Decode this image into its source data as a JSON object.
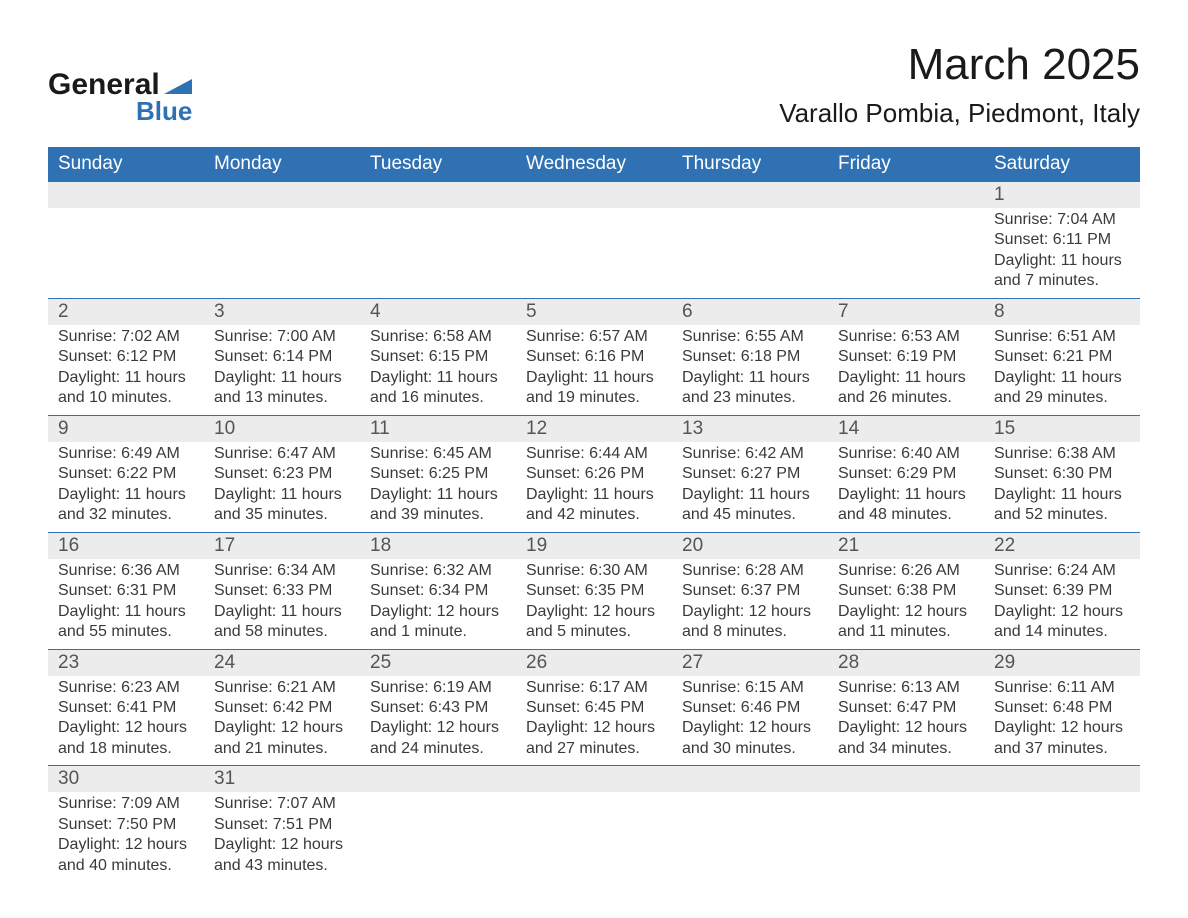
{
  "brand": {
    "line1": "General",
    "line2": "Blue",
    "accent_color": "#2f71b3"
  },
  "title": "March 2025",
  "location": "Varallo Pombia, Piedmont, Italy",
  "colors": {
    "header_bg": "#2f71b3",
    "header_text": "#ffffff",
    "daynum_bg": "#ececec",
    "border": "#2f71b3",
    "text": "#3a3a3a",
    "page_bg": "#ffffff"
  },
  "fonts": {
    "title_size_pt": 33,
    "location_size_pt": 20,
    "header_size_pt": 14,
    "daynum_size_pt": 14,
    "body_size_pt": 12
  },
  "days_of_week": [
    "Sunday",
    "Monday",
    "Tuesday",
    "Wednesday",
    "Thursday",
    "Friday",
    "Saturday"
  ],
  "labels": {
    "sunrise": "Sunrise:",
    "sunset": "Sunset:",
    "daylight": "Daylight:"
  },
  "weeks": [
    [
      null,
      null,
      null,
      null,
      null,
      null,
      {
        "n": 1,
        "sunrise": "7:04 AM",
        "sunset": "6:11 PM",
        "daylight": "11 hours and 7 minutes."
      }
    ],
    [
      {
        "n": 2,
        "sunrise": "7:02 AM",
        "sunset": "6:12 PM",
        "daylight": "11 hours and 10 minutes."
      },
      {
        "n": 3,
        "sunrise": "7:00 AM",
        "sunset": "6:14 PM",
        "daylight": "11 hours and 13 minutes."
      },
      {
        "n": 4,
        "sunrise": "6:58 AM",
        "sunset": "6:15 PM",
        "daylight": "11 hours and 16 minutes."
      },
      {
        "n": 5,
        "sunrise": "6:57 AM",
        "sunset": "6:16 PM",
        "daylight": "11 hours and 19 minutes."
      },
      {
        "n": 6,
        "sunrise": "6:55 AM",
        "sunset": "6:18 PM",
        "daylight": "11 hours and 23 minutes."
      },
      {
        "n": 7,
        "sunrise": "6:53 AM",
        "sunset": "6:19 PM",
        "daylight": "11 hours and 26 minutes."
      },
      {
        "n": 8,
        "sunrise": "6:51 AM",
        "sunset": "6:21 PM",
        "daylight": "11 hours and 29 minutes."
      }
    ],
    [
      {
        "n": 9,
        "sunrise": "6:49 AM",
        "sunset": "6:22 PM",
        "daylight": "11 hours and 32 minutes."
      },
      {
        "n": 10,
        "sunrise": "6:47 AM",
        "sunset": "6:23 PM",
        "daylight": "11 hours and 35 minutes."
      },
      {
        "n": 11,
        "sunrise": "6:45 AM",
        "sunset": "6:25 PM",
        "daylight": "11 hours and 39 minutes."
      },
      {
        "n": 12,
        "sunrise": "6:44 AM",
        "sunset": "6:26 PM",
        "daylight": "11 hours and 42 minutes."
      },
      {
        "n": 13,
        "sunrise": "6:42 AM",
        "sunset": "6:27 PM",
        "daylight": "11 hours and 45 minutes."
      },
      {
        "n": 14,
        "sunrise": "6:40 AM",
        "sunset": "6:29 PM",
        "daylight": "11 hours and 48 minutes."
      },
      {
        "n": 15,
        "sunrise": "6:38 AM",
        "sunset": "6:30 PM",
        "daylight": "11 hours and 52 minutes."
      }
    ],
    [
      {
        "n": 16,
        "sunrise": "6:36 AM",
        "sunset": "6:31 PM",
        "daylight": "11 hours and 55 minutes."
      },
      {
        "n": 17,
        "sunrise": "6:34 AM",
        "sunset": "6:33 PM",
        "daylight": "11 hours and 58 minutes."
      },
      {
        "n": 18,
        "sunrise": "6:32 AM",
        "sunset": "6:34 PM",
        "daylight": "12 hours and 1 minute."
      },
      {
        "n": 19,
        "sunrise": "6:30 AM",
        "sunset": "6:35 PM",
        "daylight": "12 hours and 5 minutes."
      },
      {
        "n": 20,
        "sunrise": "6:28 AM",
        "sunset": "6:37 PM",
        "daylight": "12 hours and 8 minutes."
      },
      {
        "n": 21,
        "sunrise": "6:26 AM",
        "sunset": "6:38 PM",
        "daylight": "12 hours and 11 minutes."
      },
      {
        "n": 22,
        "sunrise": "6:24 AM",
        "sunset": "6:39 PM",
        "daylight": "12 hours and 14 minutes."
      }
    ],
    [
      {
        "n": 23,
        "sunrise": "6:23 AM",
        "sunset": "6:41 PM",
        "daylight": "12 hours and 18 minutes."
      },
      {
        "n": 24,
        "sunrise": "6:21 AM",
        "sunset": "6:42 PM",
        "daylight": "12 hours and 21 minutes."
      },
      {
        "n": 25,
        "sunrise": "6:19 AM",
        "sunset": "6:43 PM",
        "daylight": "12 hours and 24 minutes."
      },
      {
        "n": 26,
        "sunrise": "6:17 AM",
        "sunset": "6:45 PM",
        "daylight": "12 hours and 27 minutes."
      },
      {
        "n": 27,
        "sunrise": "6:15 AM",
        "sunset": "6:46 PM",
        "daylight": "12 hours and 30 minutes."
      },
      {
        "n": 28,
        "sunrise": "6:13 AM",
        "sunset": "6:47 PM",
        "daylight": "12 hours and 34 minutes."
      },
      {
        "n": 29,
        "sunrise": "6:11 AM",
        "sunset": "6:48 PM",
        "daylight": "12 hours and 37 minutes."
      }
    ],
    [
      {
        "n": 30,
        "sunrise": "7:09 AM",
        "sunset": "7:50 PM",
        "daylight": "12 hours and 40 minutes."
      },
      {
        "n": 31,
        "sunrise": "7:07 AM",
        "sunset": "7:51 PM",
        "daylight": "12 hours and 43 minutes."
      },
      null,
      null,
      null,
      null,
      null
    ]
  ]
}
